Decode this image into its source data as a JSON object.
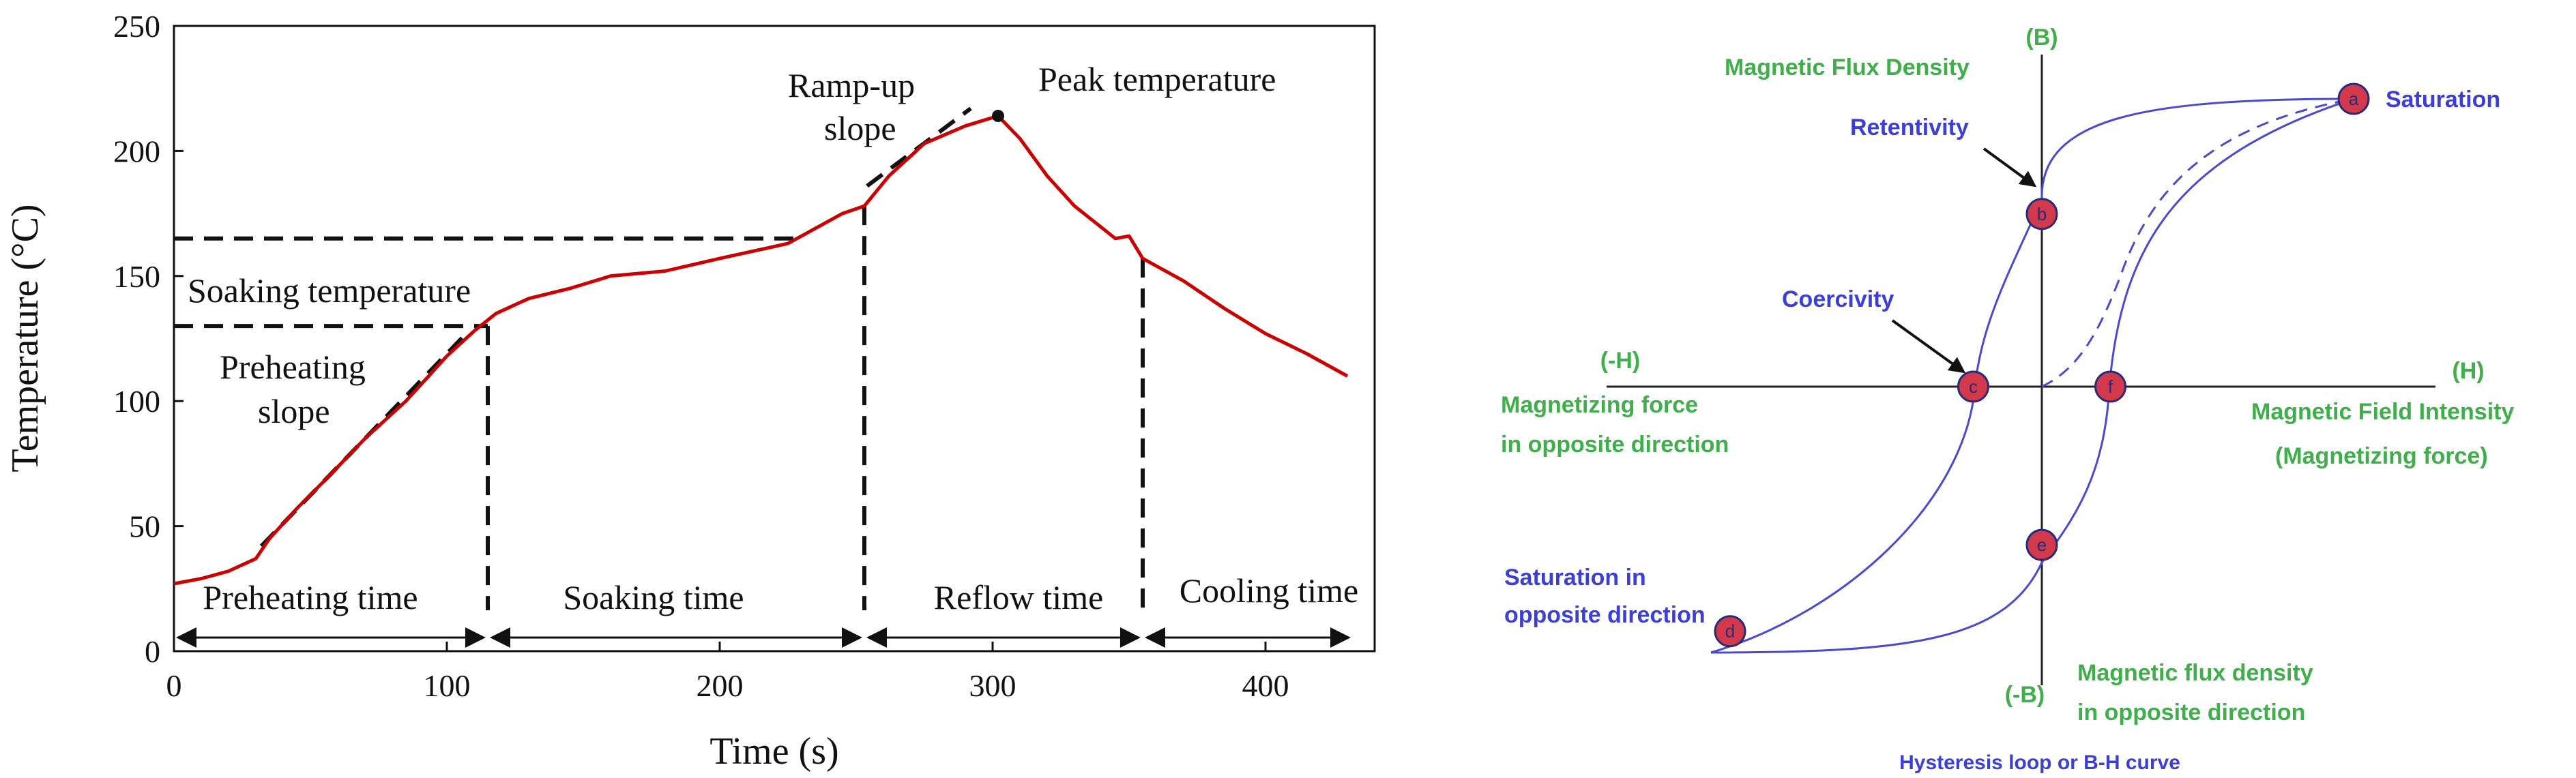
{
  "chart_data": [
    {
      "type": "line",
      "xlabel": "Time (s)",
      "ylabel": "Temperature (°C)",
      "xlim": [
        0,
        440
      ],
      "ylim": [
        0,
        250
      ],
      "x_ticks": [
        "0",
        "100",
        "200",
        "300",
        "400"
      ],
      "y_ticks": [
        "0",
        "50",
        "100",
        "150",
        "200",
        "250"
      ],
      "grid": false,
      "series": [
        {
          "color": "#cc0000",
          "x": [
            0,
            10,
            20,
            30,
            35,
            45,
            55,
            70,
            85,
            100,
            110,
            118,
            130,
            145,
            160,
            180,
            200,
            225,
            245,
            253,
            262,
            275,
            290,
            302,
            310,
            320,
            330,
            345,
            350,
            355,
            370,
            385,
            400,
            415,
            430
          ],
          "y": [
            27,
            29,
            32,
            37,
            45,
            57,
            68,
            85,
            100,
            118,
            128,
            135,
            141,
            145,
            150,
            152,
            157,
            163,
            175,
            178,
            190,
            203,
            210,
            214,
            205,
            190,
            178,
            165,
            166,
            157,
            148,
            137,
            127,
            119,
            110
          ]
        }
      ],
      "annotations": {
        "soaking_temperature": "Soaking temperature",
        "preheating_slope": [
          "Preheating",
          "slope"
        ],
        "ramp_up_slope": [
          "Ramp-up",
          "slope"
        ],
        "peak_temperature": "Peak temperature",
        "phases": [
          "Preheating time",
          "Soaking time",
          "Reflow time",
          "Cooling time"
        ]
      },
      "reference_lines": {
        "soak_levels": [
          130,
          165
        ],
        "phase_boundaries": [
          115,
          253,
          355
        ],
        "peak_point": [
          302,
          214
        ]
      }
    },
    {
      "type": "scatter",
      "title": "Hysteresis loop or B-H curve",
      "labels": {
        "b_axis_pos": "(B)",
        "b_axis_neg": "(-B)",
        "h_axis_pos": "(H)",
        "h_axis_neg": "(-H)",
        "flux_density": "Magnetic Flux Density",
        "field_intensity": [
          "Magnetic Field Intensity",
          "(Magnetizing force)"
        ],
        "magnetizing_force_opp": [
          "Magnetizing force",
          "in opposite direction"
        ],
        "flux_density_opp": [
          "Magnetic flux density",
          "in opposite direction"
        ],
        "saturation": "Saturation",
        "saturation_opp": [
          "Saturation in",
          "opposite direction"
        ],
        "retentivity": "Retentivity",
        "coercivity": "Coercivity"
      },
      "points": [
        {
          "id": "a",
          "h": 1,
          "b": 1
        },
        {
          "id": "b",
          "h": 0,
          "b": 0.6
        },
        {
          "id": "c",
          "h": -0.22,
          "b": 0
        },
        {
          "id": "d",
          "h": -1,
          "b": -0.85
        },
        {
          "id": "e",
          "h": 0,
          "b": -0.55
        },
        {
          "id": "f",
          "h": 0.22,
          "b": 0
        }
      ],
      "colors": {
        "curve": "#4a4ad0",
        "point_fill": "#d23a4c",
        "green": "#3fae4b",
        "blue": "#3b3fd6"
      }
    }
  ]
}
